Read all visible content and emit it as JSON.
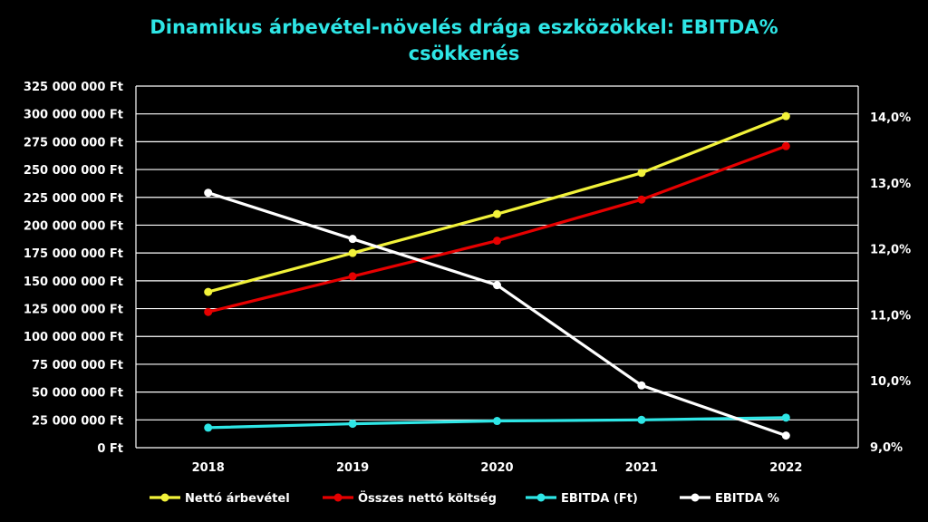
{
  "chart_data": {
    "type": "line",
    "title_line1": "Dinamikus árbevétel-növelés drága eszközökkel: EBITDA%",
    "title_line2": "csökkenés",
    "title_color": "#2ee6e6",
    "categories": [
      "2018",
      "2019",
      "2020",
      "2021",
      "2022"
    ],
    "y_left": {
      "min": 0,
      "max": 325000000,
      "step": 25000000,
      "tick_labels": [
        "0 Ft",
        "25 000 000 Ft",
        "50 000 000 Ft",
        "75 000 000 Ft",
        "100 000 000 Ft",
        "125 000 000 Ft",
        "150 000 000 Ft",
        "175 000 000 Ft",
        "200 000 000 Ft",
        "225 000 000 Ft",
        "250 000 000 Ft",
        "275 000 000 Ft",
        "300 000 000 Ft",
        "325 000 000 Ft"
      ]
    },
    "y_right": {
      "min": 9.0,
      "max": 14.0,
      "step": 1.0,
      "tick_labels": [
        "9,0%",
        "10,0%",
        "11,0%",
        "12,0%",
        "13,0%",
        "14,0%"
      ]
    },
    "grid": true,
    "legend_position": "bottom",
    "series": [
      {
        "name": "Nettó árbevétel",
        "axis": "left",
        "color": "#f2f23a",
        "values": [
          140000000,
          175000000,
          210000000,
          247000000,
          298000000
        ]
      },
      {
        "name": "Összes nettó költség",
        "axis": "left",
        "color": "#e60000",
        "values": [
          122000000,
          154000000,
          186000000,
          223000000,
          271000000
        ]
      },
      {
        "name": "EBITDA (Ft)",
        "axis": "left",
        "color": "#2ee6e6",
        "values": [
          18000000,
          21500000,
          24000000,
          25000000,
          27000000
        ]
      },
      {
        "name": "EBITDA %",
        "axis": "right",
        "color": "#ffffff",
        "values": [
          12.85,
          12.15,
          11.45,
          9.93,
          9.17
        ]
      }
    ]
  }
}
